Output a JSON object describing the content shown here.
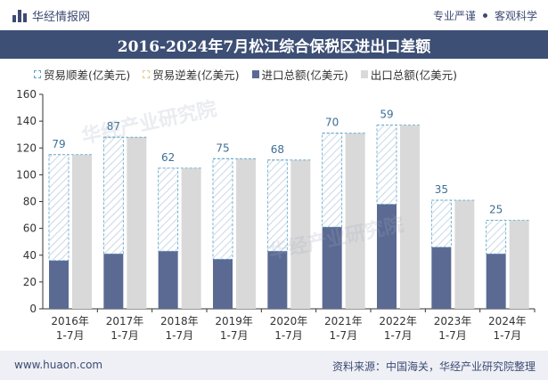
{
  "header": {
    "brand": "华经情报网",
    "slogan_1": "专业严谨",
    "slogan_2": "客观科学"
  },
  "footer": {
    "website": "www.huaon.com",
    "source": "资料来源：中国海关，华经产业研究院整理"
  },
  "watermark": "华经产业研究院",
  "colors": {
    "title_bg": "#3d4f75",
    "import": "#5b6a93",
    "export": "#d9d9d9",
    "surplus_border": "#5aa0c8",
    "deficit_border": "#e0c98a",
    "label": "#3d6f96"
  },
  "chart_data": {
    "type": "bar",
    "title": "2016-2024年7月松江综合保税区进出口差额",
    "categories": [
      [
        "2016年",
        "1-7月"
      ],
      [
        "2017年",
        "1-7月"
      ],
      [
        "2018年",
        "1-7月"
      ],
      [
        "2019年",
        "1-7月"
      ],
      [
        "2020年",
        "1-7月"
      ],
      [
        "2021年",
        "1-7月"
      ],
      [
        "2022年",
        "1-7月"
      ],
      [
        "2023年",
        "1-7月"
      ],
      [
        "2024年",
        "1-7月"
      ]
    ],
    "series": [
      {
        "name": "贸易顺差(亿美元)",
        "values": [
          79,
          87,
          62,
          75,
          68,
          70,
          59,
          35,
          25
        ]
      },
      {
        "name": "贸易逆差(亿美元)",
        "values": [
          0,
          0,
          0,
          0,
          0,
          0,
          0,
          0,
          0
        ]
      },
      {
        "name": "进口总额(亿美元)",
        "values": [
          36,
          41,
          43,
          37,
          43,
          61,
          78,
          46,
          41
        ]
      },
      {
        "name": "出口总额(亿美元)",
        "values": [
          115,
          128,
          105,
          112,
          111,
          131,
          137,
          81,
          66
        ]
      }
    ],
    "ylim": [
      0,
      160
    ],
    "yticks": [
      0,
      20,
      40,
      60,
      80,
      100,
      120,
      140,
      160
    ],
    "xlabel": "",
    "ylabel": "",
    "legend_position": "top-left"
  }
}
